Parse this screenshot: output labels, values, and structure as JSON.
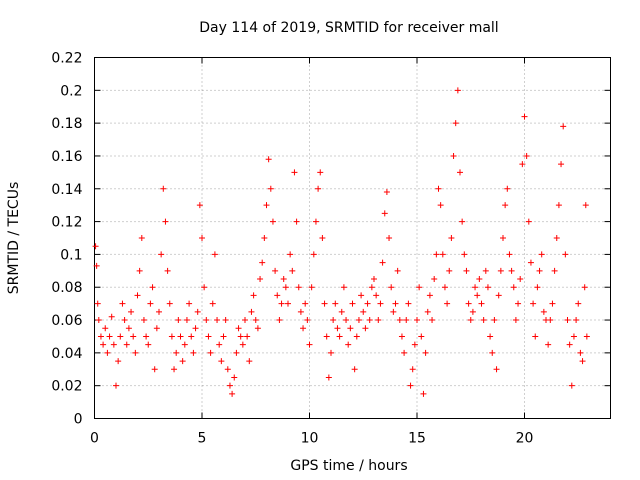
{
  "chart_data": {
    "type": "scatter",
    "title": "Day 114 of 2019, SRMTID for receiver mall",
    "xlabel": "GPS time / hours",
    "ylabel": "SRMTID / TECUs",
    "xlim": [
      0,
      24
    ],
    "ylim": [
      0,
      0.22
    ],
    "x_ticks": [
      0,
      5,
      10,
      15,
      20
    ],
    "x_tick_labels": [
      "0",
      "5",
      "10",
      "15",
      "20"
    ],
    "y_ticks": [
      0,
      0.02,
      0.04,
      0.06,
      0.08,
      0.1,
      0.12,
      0.14,
      0.16,
      0.18,
      0.2,
      0.22
    ],
    "y_tick_labels": [
      "0",
      "0.02",
      "0.04",
      "0.06",
      "0.08",
      "0.1",
      "0.12",
      "0.14",
      "0.16",
      "0.18",
      "0.2",
      "0.22"
    ],
    "grid": true,
    "marker": "+",
    "color": "#ff0000",
    "x_data_range": [
      0,
      22.9
    ],
    "series": [
      {
        "name": "SRMTID",
        "points": [
          [
            0.05,
            0.105
          ],
          [
            0.1,
            0.093
          ],
          [
            0.15,
            0.07
          ],
          [
            0.2,
            0.06
          ],
          [
            0.3,
            0.05
          ],
          [
            0.4,
            0.045
          ],
          [
            0.5,
            0.055
          ],
          [
            0.6,
            0.04
          ],
          [
            0.7,
            0.05
          ],
          [
            0.8,
            0.062
          ],
          [
            0.9,
            0.045
          ],
          [
            1.0,
            0.02
          ],
          [
            1.1,
            0.035
          ],
          [
            1.2,
            0.05
          ],
          [
            1.3,
            0.07
          ],
          [
            1.4,
            0.06
          ],
          [
            1.5,
            0.045
          ],
          [
            1.6,
            0.055
          ],
          [
            1.7,
            0.065
          ],
          [
            1.8,
            0.05
          ],
          [
            1.9,
            0.04
          ],
          [
            2.0,
            0.075
          ],
          [
            2.1,
            0.09
          ],
          [
            2.2,
            0.11
          ],
          [
            2.3,
            0.06
          ],
          [
            2.4,
            0.05
          ],
          [
            2.5,
            0.045
          ],
          [
            2.6,
            0.07
          ],
          [
            2.7,
            0.08
          ],
          [
            2.8,
            0.03
          ],
          [
            2.9,
            0.055
          ],
          [
            3.0,
            0.065
          ],
          [
            3.1,
            0.1
          ],
          [
            3.2,
            0.14
          ],
          [
            3.3,
            0.12
          ],
          [
            3.4,
            0.09
          ],
          [
            3.5,
            0.07
          ],
          [
            3.6,
            0.05
          ],
          [
            3.7,
            0.03
          ],
          [
            3.8,
            0.04
          ],
          [
            3.9,
            0.06
          ],
          [
            4.0,
            0.05
          ],
          [
            4.1,
            0.035
          ],
          [
            4.2,
            0.045
          ],
          [
            4.3,
            0.06
          ],
          [
            4.4,
            0.07
          ],
          [
            4.5,
            0.05
          ],
          [
            4.6,
            0.04
          ],
          [
            4.7,
            0.055
          ],
          [
            4.8,
            0.065
          ],
          [
            4.9,
            0.13
          ],
          [
            5.0,
            0.11
          ],
          [
            5.1,
            0.08
          ],
          [
            5.2,
            0.06
          ],
          [
            5.3,
            0.05
          ],
          [
            5.4,
            0.04
          ],
          [
            5.5,
            0.07
          ],
          [
            5.6,
            0.1
          ],
          [
            5.7,
            0.06
          ],
          [
            5.8,
            0.045
          ],
          [
            5.9,
            0.035
          ],
          [
            6.0,
            0.05
          ],
          [
            6.1,
            0.06
          ],
          [
            6.2,
            0.03
          ],
          [
            6.3,
            0.02
          ],
          [
            6.4,
            0.015
          ],
          [
            6.5,
            0.025
          ],
          [
            6.6,
            0.04
          ],
          [
            6.7,
            0.055
          ],
          [
            6.8,
            0.05
          ],
          [
            6.9,
            0.045
          ],
          [
            7.0,
            0.06
          ],
          [
            7.1,
            0.05
          ],
          [
            7.2,
            0.035
          ],
          [
            7.3,
            0.065
          ],
          [
            7.4,
            0.075
          ],
          [
            7.5,
            0.06
          ],
          [
            7.6,
            0.055
          ],
          [
            7.7,
            0.085
          ],
          [
            7.8,
            0.095
          ],
          [
            7.9,
            0.11
          ],
          [
            8.0,
            0.13
          ],
          [
            8.1,
            0.158
          ],
          [
            8.2,
            0.14
          ],
          [
            8.3,
            0.12
          ],
          [
            8.4,
            0.09
          ],
          [
            8.5,
            0.075
          ],
          [
            8.6,
            0.06
          ],
          [
            8.7,
            0.07
          ],
          [
            8.8,
            0.085
          ],
          [
            8.9,
            0.08
          ],
          [
            9.0,
            0.07
          ],
          [
            9.1,
            0.1
          ],
          [
            9.2,
            0.09
          ],
          [
            9.3,
            0.15
          ],
          [
            9.4,
            0.12
          ],
          [
            9.5,
            0.08
          ],
          [
            9.6,
            0.065
          ],
          [
            9.7,
            0.055
          ],
          [
            9.8,
            0.07
          ],
          [
            9.9,
            0.06
          ],
          [
            10.0,
            0.045
          ],
          [
            10.1,
            0.08
          ],
          [
            10.2,
            0.1
          ],
          [
            10.3,
            0.12
          ],
          [
            10.4,
            0.14
          ],
          [
            10.5,
            0.15
          ],
          [
            10.6,
            0.11
          ],
          [
            10.7,
            0.07
          ],
          [
            10.8,
            0.05
          ],
          [
            10.9,
            0.025
          ],
          [
            11.0,
            0.04
          ],
          [
            11.1,
            0.06
          ],
          [
            11.2,
            0.07
          ],
          [
            11.3,
            0.055
          ],
          [
            11.4,
            0.05
          ],
          [
            11.5,
            0.065
          ],
          [
            11.6,
            0.08
          ],
          [
            11.7,
            0.06
          ],
          [
            11.8,
            0.045
          ],
          [
            11.9,
            0.055
          ],
          [
            12.0,
            0.07
          ],
          [
            12.1,
            0.03
          ],
          [
            12.2,
            0.05
          ],
          [
            12.3,
            0.06
          ],
          [
            12.4,
            0.075
          ],
          [
            12.5,
            0.065
          ],
          [
            12.6,
            0.055
          ],
          [
            12.7,
            0.07
          ],
          [
            12.8,
            0.06
          ],
          [
            12.9,
            0.08
          ],
          [
            13.0,
            0.085
          ],
          [
            13.1,
            0.075
          ],
          [
            13.2,
            0.06
          ],
          [
            13.3,
            0.07
          ],
          [
            13.4,
            0.095
          ],
          [
            13.5,
            0.125
          ],
          [
            13.6,
            0.138
          ],
          [
            13.7,
            0.11
          ],
          [
            13.8,
            0.08
          ],
          [
            13.9,
            0.065
          ],
          [
            14.0,
            0.07
          ],
          [
            14.1,
            0.09
          ],
          [
            14.2,
            0.06
          ],
          [
            14.3,
            0.05
          ],
          [
            14.4,
            0.04
          ],
          [
            14.5,
            0.06
          ],
          [
            14.6,
            0.07
          ],
          [
            14.7,
            0.02
          ],
          [
            14.8,
            0.03
          ],
          [
            14.9,
            0.045
          ],
          [
            15.0,
            0.06
          ],
          [
            15.1,
            0.08
          ],
          [
            15.2,
            0.05
          ],
          [
            15.3,
            0.015
          ],
          [
            15.4,
            0.04
          ],
          [
            15.5,
            0.065
          ],
          [
            15.6,
            0.075
          ],
          [
            15.7,
            0.06
          ],
          [
            15.8,
            0.085
          ],
          [
            15.9,
            0.1
          ],
          [
            16.0,
            0.14
          ],
          [
            16.1,
            0.13
          ],
          [
            16.2,
            0.1
          ],
          [
            16.3,
            0.08
          ],
          [
            16.4,
            0.07
          ],
          [
            16.5,
            0.09
          ],
          [
            16.6,
            0.11
          ],
          [
            16.7,
            0.16
          ],
          [
            16.8,
            0.18
          ],
          [
            16.9,
            0.2
          ],
          [
            17.0,
            0.15
          ],
          [
            17.1,
            0.12
          ],
          [
            17.2,
            0.1
          ],
          [
            17.3,
            0.09
          ],
          [
            17.4,
            0.07
          ],
          [
            17.5,
            0.06
          ],
          [
            17.6,
            0.065
          ],
          [
            17.7,
            0.08
          ],
          [
            17.8,
            0.075
          ],
          [
            17.9,
            0.085
          ],
          [
            18.0,
            0.07
          ],
          [
            18.1,
            0.06
          ],
          [
            18.2,
            0.09
          ],
          [
            18.3,
            0.08
          ],
          [
            18.4,
            0.05
          ],
          [
            18.5,
            0.04
          ],
          [
            18.6,
            0.06
          ],
          [
            18.7,
            0.03
          ],
          [
            18.8,
            0.075
          ],
          [
            18.9,
            0.09
          ],
          [
            19.0,
            0.11
          ],
          [
            19.1,
            0.13
          ],
          [
            19.2,
            0.14
          ],
          [
            19.3,
            0.1
          ],
          [
            19.4,
            0.09
          ],
          [
            19.5,
            0.08
          ],
          [
            19.6,
            0.06
          ],
          [
            19.7,
            0.07
          ],
          [
            19.8,
            0.085
          ],
          [
            19.9,
            0.155
          ],
          [
            20.0,
            0.184
          ],
          [
            20.1,
            0.16
          ],
          [
            20.2,
            0.12
          ],
          [
            20.3,
            0.095
          ],
          [
            20.4,
            0.07
          ],
          [
            20.5,
            0.05
          ],
          [
            20.6,
            0.08
          ],
          [
            20.7,
            0.09
          ],
          [
            20.8,
            0.1
          ],
          [
            20.9,
            0.065
          ],
          [
            21.0,
            0.06
          ],
          [
            21.1,
            0.045
          ],
          [
            21.2,
            0.06
          ],
          [
            21.3,
            0.07
          ],
          [
            21.4,
            0.09
          ],
          [
            21.5,
            0.11
          ],
          [
            21.6,
            0.13
          ],
          [
            21.7,
            0.155
          ],
          [
            21.8,
            0.178
          ],
          [
            21.9,
            0.1
          ],
          [
            22.0,
            0.06
          ],
          [
            22.1,
            0.045
          ],
          [
            22.2,
            0.02
          ],
          [
            22.3,
            0.05
          ],
          [
            22.4,
            0.06
          ],
          [
            22.5,
            0.07
          ],
          [
            22.6,
            0.04
          ],
          [
            22.7,
            0.035
          ],
          [
            22.8,
            0.08
          ],
          [
            22.85,
            0.13
          ],
          [
            22.9,
            0.05
          ]
        ]
      }
    ]
  }
}
